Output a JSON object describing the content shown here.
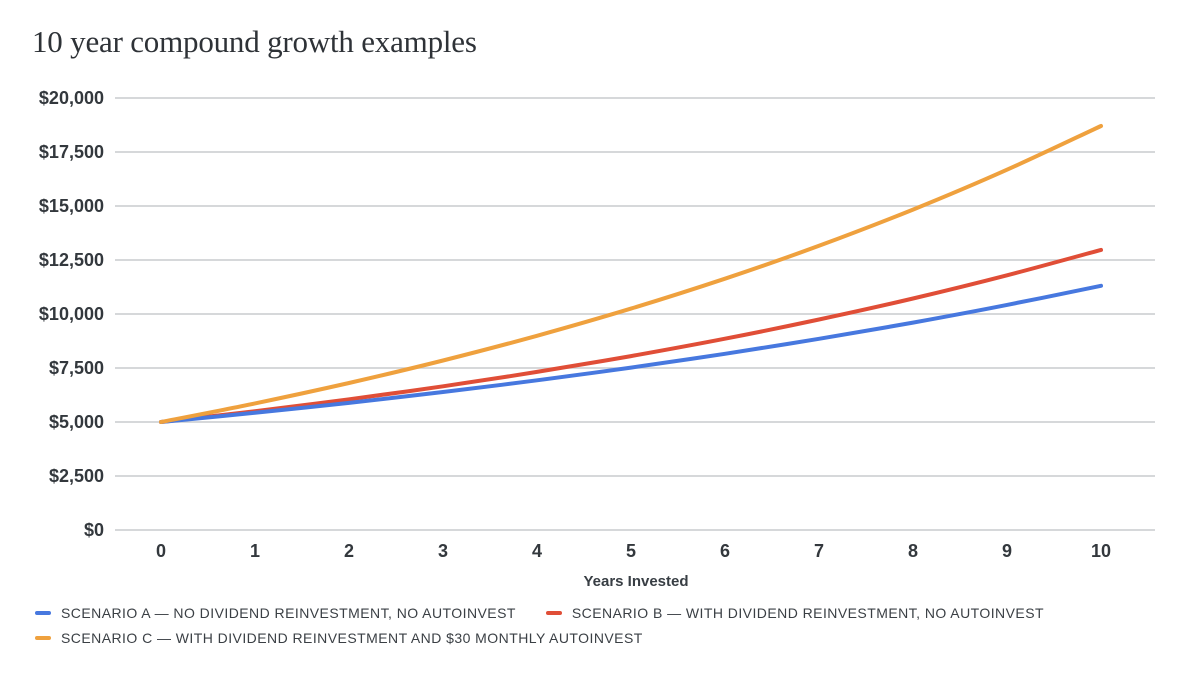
{
  "chart_data": {
    "type": "line",
    "title": "10 year compound growth examples",
    "xlabel": "Years Invested",
    "ylabel": "",
    "x": [
      0,
      1,
      2,
      3,
      4,
      5,
      6,
      7,
      8,
      9,
      10
    ],
    "x_tick_labels": [
      "0",
      "1",
      "2",
      "3",
      "4",
      "5",
      "6",
      "7",
      "8",
      "9",
      "10"
    ],
    "y_ticks": [
      0,
      2500,
      5000,
      7500,
      10000,
      12500,
      15000,
      17500,
      20000
    ],
    "y_tick_labels": [
      "$0",
      "$2,500",
      "$5,000",
      "$7,500",
      "$10,000",
      "$12,500",
      "$15,000",
      "$17,500",
      "$20,000"
    ],
    "ylim": [
      0,
      20000
    ],
    "xlim": [
      0,
      10
    ],
    "grid": "horizontal",
    "legend_position": "bottom",
    "series": [
      {
        "name": "SCENARIO A — NO DIVIDEND REINVESTMENT, NO AUTOINVEST",
        "color": "#4778DF",
        "values": [
          5000,
          5425,
          5886,
          6387,
          6930,
          7518,
          8157,
          8850,
          9603,
          10419,
          11305
        ]
      },
      {
        "name": "SCENARIO B — WITH DIVIDEND REINVESTMENT, NO AUTOINVEST",
        "color": "#E04E37",
        "values": [
          5000,
          5500,
          6050,
          6655,
          7321,
          8053,
          8858,
          9744,
          10718,
          11790,
          12969
        ]
      },
      {
        "name": "SCENARIO C — WITH DIVIDEND REINVESTMENT AND $30 MONTHLY AUTOINVEST",
        "color": "#EFA13E",
        "values": [
          5000,
          5860,
          6806,
          7847,
          8992,
          10251,
          11636,
          13159,
          14835,
          16679,
          18706
        ]
      }
    ]
  },
  "colors": {
    "grid": "#C8CBCE",
    "axis_text": "#33383D",
    "title_text": "#2E3237",
    "legend_text": "#3A3F44",
    "background": "#FFFFFF"
  }
}
